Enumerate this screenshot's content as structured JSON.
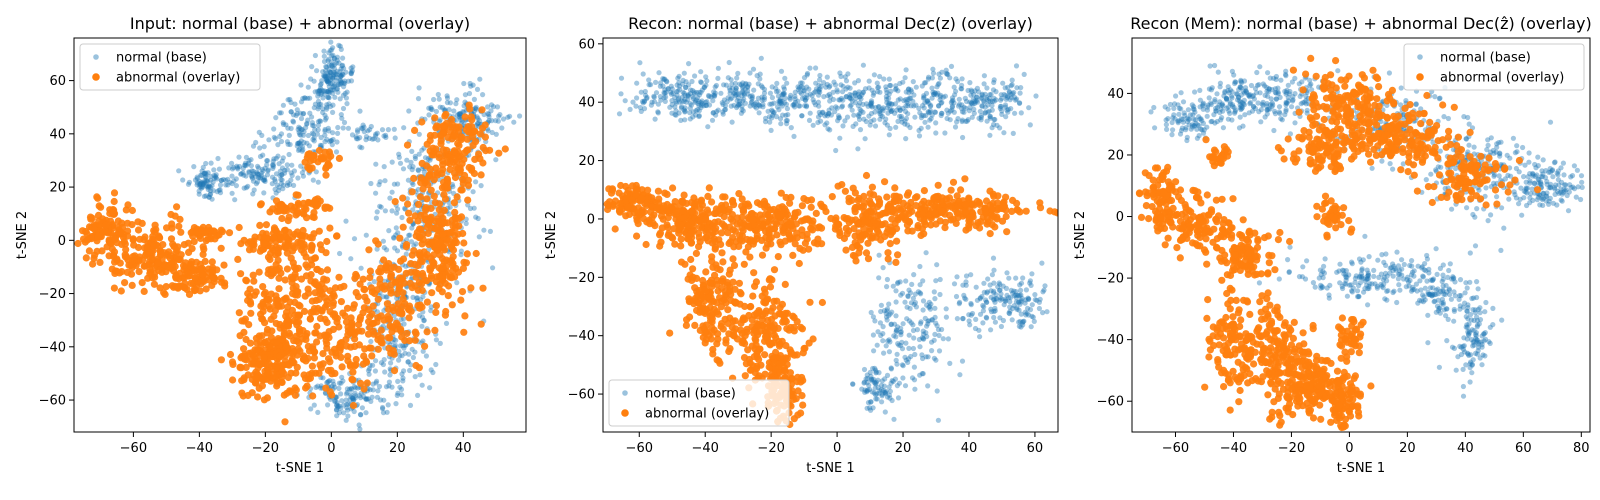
{
  "normal_color": "#1f77b4",
  "abnormal_color": "#ff7f0e",
  "chart_data": [
    {
      "type": "scatter",
      "title": "Input: normal (base) + abnormal (overlay)",
      "xlabel": "t-SNE 1",
      "ylabel": "t-SNE 2",
      "xlim": [
        -78,
        59
      ],
      "ylim": [
        -72,
        76
      ],
      "xticks": [
        -60,
        -40,
        -20,
        0,
        20,
        40
      ],
      "yticks": [
        -60,
        -40,
        -20,
        0,
        20,
        40,
        60
      ],
      "legend": {
        "loc": "upper-left",
        "entries": [
          "normal (base)",
          "abnormal (overlay)"
        ]
      },
      "series": [
        {
          "name": "normal (base)",
          "clusters": [
            {
              "cx": 0,
              "cy": 60,
              "sx": 3,
              "sy": 6,
              "n": 160
            },
            {
              "cx": -8,
              "cy": 42,
              "sx": 6,
              "sy": 6,
              "n": 140
            },
            {
              "cx": -22,
              "cy": 25,
              "sx": 8,
              "sy": 4,
              "n": 150
            },
            {
              "cx": -37,
              "cy": 21,
              "sx": 3,
              "sy": 3,
              "n": 70
            },
            {
              "cx": 40,
              "cy": 45,
              "sx": 6,
              "sy": 6,
              "n": 170
            },
            {
              "cx": 30,
              "cy": 15,
              "sx": 8,
              "sy": 15,
              "n": 250
            },
            {
              "cx": 20,
              "cy": -30,
              "sx": 6,
              "sy": 18,
              "n": 260
            },
            {
              "cx": 5,
              "cy": -58,
              "sx": 6,
              "sy": 4,
              "n": 130
            },
            {
              "cx": 12,
              "cy": 40,
              "sx": 4,
              "sy": 2,
              "n": 30
            }
          ]
        },
        {
          "name": "abnormal (overlay)",
          "clusters": [
            {
              "cx": -68,
              "cy": 3,
              "sx": 4,
              "sy": 6,
              "n": 110
            },
            {
              "cx": -55,
              "cy": -5,
              "sx": 6,
              "sy": 6,
              "n": 150
            },
            {
              "cx": -42,
              "cy": -13,
              "sx": 5,
              "sy": 4,
              "n": 100
            },
            {
              "cx": -38,
              "cy": 2,
              "sx": 3,
              "sy": 2,
              "n": 40
            },
            {
              "cx": -18,
              "cy": -45,
              "sx": 6,
              "sy": 7,
              "n": 240
            },
            {
              "cx": -12,
              "cy": -20,
              "sx": 8,
              "sy": 10,
              "n": 200
            },
            {
              "cx": -15,
              "cy": 0,
              "sx": 7,
              "sy": 3,
              "n": 100
            },
            {
              "cx": -10,
              "cy": 12,
              "sx": 5,
              "sy": 2,
              "n": 50
            },
            {
              "cx": -3,
              "cy": 30,
              "sx": 3,
              "sy": 2,
              "n": 30
            },
            {
              "cx": 32,
              "cy": 0,
              "sx": 5,
              "sy": 14,
              "n": 240
            },
            {
              "cx": 38,
              "cy": 35,
              "sx": 5,
              "sy": 7,
              "n": 130
            },
            {
              "cx": 18,
              "cy": -25,
              "sx": 6,
              "sy": 10,
              "n": 130
            },
            {
              "cx": 5,
              "cy": -40,
              "sx": 6,
              "sy": 8,
              "n": 100
            }
          ]
        }
      ]
    },
    {
      "type": "scatter",
      "title": "Recon: normal (base) + abnormal Dec(z) (overlay)",
      "xlabel": "t-SNE 1",
      "ylabel": "t-SNE 2",
      "xlim": [
        -71,
        67
      ],
      "ylim": [
        -73,
        62
      ],
      "xticks": [
        -60,
        -40,
        -20,
        0,
        20,
        40,
        60
      ],
      "yticks": [
        -60,
        -40,
        -20,
        0,
        20,
        40,
        60
      ],
      "legend": {
        "loc": "lower-left",
        "entries": [
          "normal (base)",
          "abnormal (overlay)"
        ]
      },
      "series": [
        {
          "name": "normal (base)",
          "clusters": [
            {
              "cx": -45,
              "cy": 42,
              "sx": 10,
              "sy": 4,
              "n": 200
            },
            {
              "cx": -20,
              "cy": 41,
              "sx": 10,
              "sy": 5,
              "n": 200
            },
            {
              "cx": 5,
              "cy": 40,
              "sx": 10,
              "sy": 5,
              "n": 200
            },
            {
              "cx": 30,
              "cy": 40,
              "sx": 10,
              "sy": 5,
              "n": 200
            },
            {
              "cx": 48,
              "cy": 40,
              "sx": 5,
              "sy": 4,
              "n": 100
            },
            {
              "cx": 12,
              "cy": -57,
              "sx": 3,
              "sy": 5,
              "n": 80
            },
            {
              "cx": 22,
              "cy": -38,
              "sx": 6,
              "sy": 10,
              "n": 180
            },
            {
              "cx": 50,
              "cy": -28,
              "sx": 7,
              "sy": 5,
              "n": 170
            }
          ]
        },
        {
          "name": "abnormal (overlay)",
          "clusters": [
            {
              "cx": -62,
              "cy": 6,
              "sx": 4,
              "sy": 3,
              "n": 100
            },
            {
              "cx": -45,
              "cy": 0,
              "sx": 8,
              "sy": 4,
              "n": 180
            },
            {
              "cx": -22,
              "cy": -2,
              "sx": 10,
              "sy": 5,
              "n": 220
            },
            {
              "cx": 10,
              "cy": 0,
              "sx": 6,
              "sy": 6,
              "n": 150
            },
            {
              "cx": 35,
              "cy": 3,
              "sx": 12,
              "sy": 3,
              "n": 220
            },
            {
              "cx": -38,
              "cy": -28,
              "sx": 5,
              "sy": 8,
              "n": 150
            },
            {
              "cx": -22,
              "cy": -40,
              "sx": 6,
              "sy": 10,
              "n": 200
            },
            {
              "cx": -17,
              "cy": -58,
              "sx": 3,
              "sy": 6,
              "n": 100
            }
          ]
        }
      ]
    },
    {
      "type": "scatter",
      "title": "Recon (Mem): normal (base) + abnormal Dec(ẑ) (overlay)",
      "xlabel": "t-SNE 1",
      "ylabel": "t-SNE 2",
      "xlim": [
        -75,
        83
      ],
      "ylim": [
        -70,
        58
      ],
      "xticks": [
        -60,
        -40,
        -20,
        0,
        20,
        40,
        60,
        80
      ],
      "yticks": [
        -60,
        -40,
        -20,
        0,
        20,
        40
      ],
      "legend": {
        "loc": "upper-right",
        "entries": [
          "normal (base)",
          "abnormal (overlay)"
        ]
      },
      "series": [
        {
          "name": "normal (base)",
          "clusters": [
            {
              "cx": -55,
              "cy": 32,
              "sx": 6,
              "sy": 4,
              "n": 100
            },
            {
              "cx": -38,
              "cy": 38,
              "sx": 6,
              "sy": 4,
              "n": 120
            },
            {
              "cx": -20,
              "cy": 40,
              "sx": 8,
              "sy": 4,
              "n": 120
            },
            {
              "cx": 15,
              "cy": 30,
              "sx": 10,
              "sy": 6,
              "n": 150
            },
            {
              "cx": 45,
              "cy": 15,
              "sx": 10,
              "sy": 6,
              "n": 200
            },
            {
              "cx": 68,
              "cy": 10,
              "sx": 6,
              "sy": 4,
              "n": 120
            },
            {
              "cx": 10,
              "cy": -20,
              "sx": 14,
              "sy": 4,
              "n": 200
            },
            {
              "cx": 42,
              "cy": -38,
              "sx": 4,
              "sy": 8,
              "n": 120
            },
            {
              "cx": 30,
              "cy": -25,
              "sx": 5,
              "sy": 4,
              "n": 60
            }
          ]
        },
        {
          "name": "abnormal (overlay)",
          "clusters": [
            {
              "cx": -65,
              "cy": 8,
              "sx": 3,
              "sy": 5,
              "n": 80
            },
            {
              "cx": -52,
              "cy": -3,
              "sx": 6,
              "sy": 5,
              "n": 120
            },
            {
              "cx": -35,
              "cy": -12,
              "sx": 5,
              "sy": 5,
              "n": 100
            },
            {
              "cx": -40,
              "cy": -40,
              "sx": 4,
              "sy": 8,
              "n": 120
            },
            {
              "cx": -25,
              "cy": -45,
              "sx": 5,
              "sy": 10,
              "n": 150
            },
            {
              "cx": -12,
              "cy": -55,
              "sx": 6,
              "sy": 5,
              "n": 150
            },
            {
              "cx": -2,
              "cy": -60,
              "sx": 3,
              "sy": 4,
              "n": 80
            },
            {
              "cx": 0,
              "cy": 35,
              "sx": 8,
              "sy": 6,
              "n": 180
            },
            {
              "cx": -10,
              "cy": 22,
              "sx": 6,
              "sy": 4,
              "n": 100
            },
            {
              "cx": 20,
              "cy": 25,
              "sx": 8,
              "sy": 5,
              "n": 150
            },
            {
              "cx": 40,
              "cy": 12,
              "sx": 8,
              "sy": 5,
              "n": 100
            },
            {
              "cx": -5,
              "cy": 0,
              "sx": 3,
              "sy": 3,
              "n": 40
            },
            {
              "cx": 0,
              "cy": -40,
              "sx": 3,
              "sy": 3,
              "n": 40
            },
            {
              "cx": -45,
              "cy": 20,
              "sx": 2,
              "sy": 2,
              "n": 25
            }
          ]
        }
      ]
    }
  ]
}
